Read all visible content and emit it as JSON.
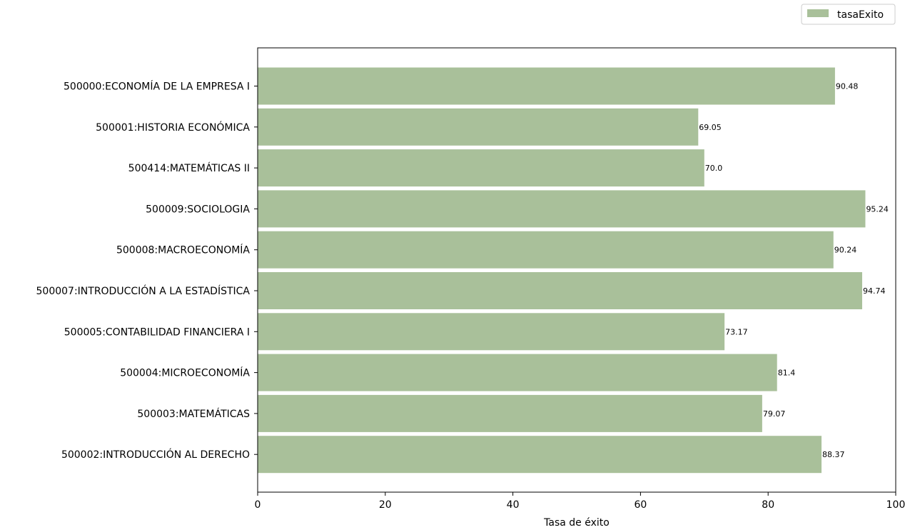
{
  "chart_data": {
    "type": "bar",
    "orientation": "horizontal",
    "categories": [
      "500000:ECONOMÍA DE LA EMPRESA I",
      "500001:HISTORIA ECONÓMICA",
      "500414:MATEMÁTICAS II",
      "500009:SOCIOLOGIA",
      "500008:MACROECONOMÍA",
      "500007:INTRODUCCIÓN A LA ESTADÍSTICA",
      "500005:CONTABILIDAD FINANCIERA I",
      "500004:MICROECONOMÍA",
      "500003:MATEMÁTICAS",
      "500002:INTRODUCCIÓN AL DERECHO"
    ],
    "series": [
      {
        "name": "tasaExito",
        "values": [
          90.48,
          69.05,
          70.0,
          95.24,
          90.24,
          94.74,
          73.17,
          81.4,
          79.07,
          88.37
        ],
        "value_labels": [
          "90.48",
          "69.05",
          "70.0",
          "95.24",
          "90.24",
          "94.74",
          "73.17",
          "81.4",
          "79.07",
          "88.37"
        ],
        "color": "#a9c09a"
      }
    ],
    "xlabel": "Tasa de éxito",
    "ylabel": "",
    "xlim": [
      0,
      100
    ],
    "xticks": [
      0,
      20,
      40,
      60,
      80,
      100
    ],
    "grid": false,
    "legend": "top-right"
  }
}
